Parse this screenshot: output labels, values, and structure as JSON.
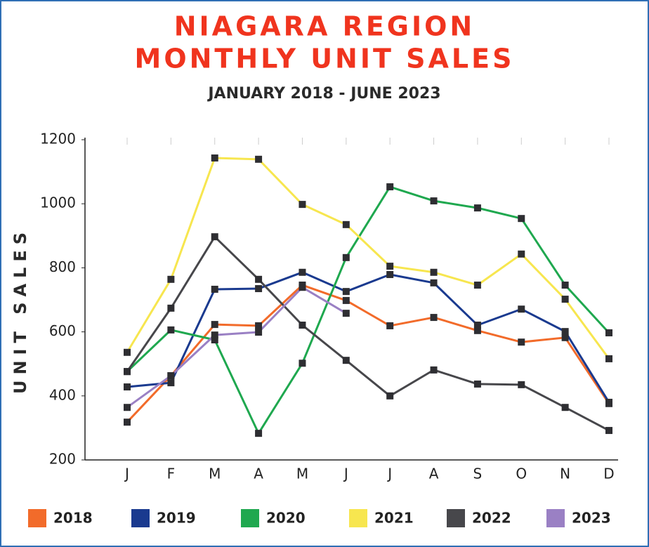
{
  "chart_data": {
    "type": "line",
    "title": [
      "NIAGARA REGION",
      "MONTHLY UNIT SALES"
    ],
    "subtitle": "JANUARY 2018 - JUNE 2023",
    "y_label": "UNIT SALES",
    "categories": [
      "J",
      "F",
      "M",
      "A",
      "M",
      "J",
      "J",
      "A",
      "S",
      "O",
      "N",
      "D"
    ],
    "ylim": [
      200,
      1200
    ],
    "yticks": [
      200,
      400,
      600,
      800,
      1000,
      1200
    ],
    "grid": false,
    "legend": "bottom",
    "series": [
      {
        "name": "2018",
        "color": "#f26b2a",
        "values": [
          318,
          463,
          623,
          619,
          746,
          698,
          619,
          645,
          604,
          568,
          582,
          376
        ]
      },
      {
        "name": "2019",
        "color": "#1a3a8f",
        "values": [
          428,
          441,
          733,
          735,
          786,
          726,
          779,
          753,
          621,
          671,
          601,
          380
        ]
      },
      {
        "name": "2020",
        "color": "#1fa84f",
        "values": [
          476,
          606,
          575,
          283,
          502,
          832,
          1053,
          1009,
          987,
          954,
          746,
          597
        ]
      },
      {
        "name": "2021",
        "color": "#f7e64f",
        "values": [
          536,
          764,
          1143,
          1139,
          998,
          935,
          805,
          786,
          746,
          843,
          702,
          516
        ]
      },
      {
        "name": "2022",
        "color": "#47474b",
        "values": [
          476,
          674,
          897,
          764,
          621,
          511,
          400,
          481,
          437,
          435,
          364,
          292
        ]
      },
      {
        "name": "2023",
        "color": "#9a80c4",
        "values": [
          364,
          463,
          590,
          599,
          739,
          658,
          null,
          null,
          null,
          null,
          null,
          null
        ]
      }
    ]
  }
}
